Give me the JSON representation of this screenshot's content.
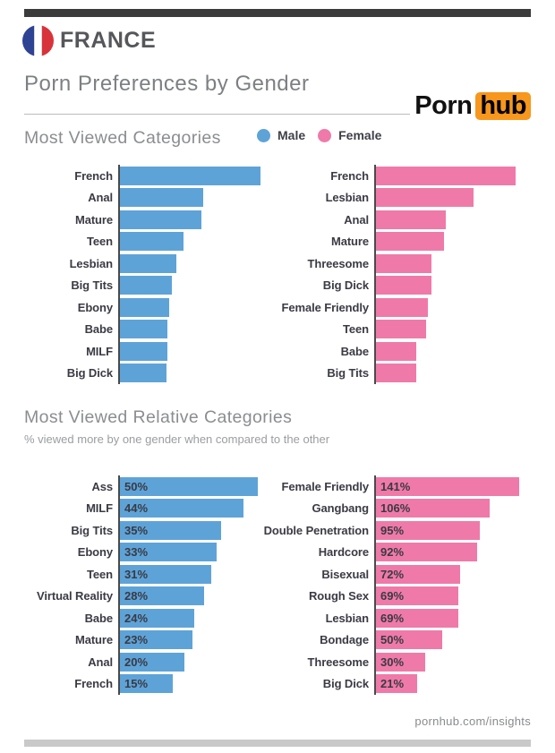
{
  "page": {
    "country": "FRANCE",
    "title": "Porn Preferences by Gender",
    "footer": "pornhub.com/insights",
    "top_bar_color": "#3b3b3b",
    "bottom_bar_color": "#c9c9c9"
  },
  "logo": {
    "part1": "Porn",
    "part2": "hub",
    "accent_color": "#f7971d"
  },
  "flag": {
    "name": "france-flag",
    "blue": "#2e4394",
    "white": "#ffffff",
    "red": "#d8333a"
  },
  "legend": {
    "male_label": "Male",
    "female_label": "Female",
    "male_color": "#5ea3d8",
    "female_color": "#ef7aa9"
  },
  "sections": {
    "most_viewed": {
      "heading": "Most Viewed Categories"
    },
    "relative": {
      "heading": "Most Viewed Relative Categories",
      "subheading": "% viewed more by one gender when compared to the other"
    }
  },
  "chart_data": [
    {
      "id": "male-top",
      "type": "bar",
      "orientation": "horizontal",
      "series_name": "Male",
      "color": "#5ea3d8",
      "title": "Most Viewed Categories (Male)",
      "categories": [
        "French",
        "Anal",
        "Mature",
        "Teen",
        "Lesbian",
        "Big Tits",
        "Ebony",
        "Babe",
        "MILF",
        "Big Dick"
      ],
      "values": [
        100,
        59,
        58,
        45,
        40,
        37,
        35,
        34,
        34,
        33
      ],
      "unit": "relative bar length, max = 100 (no numeric labels shown in image)",
      "value_labels_shown": false
    },
    {
      "id": "female-top",
      "type": "bar",
      "orientation": "horizontal",
      "series_name": "Female",
      "color": "#ef7aa9",
      "title": "Most Viewed Categories (Female)",
      "categories": [
        "French",
        "Lesbian",
        "Anal",
        "Mature",
        "Threesome",
        "Big Dick",
        "Female Friendly",
        "Teen",
        "Babe",
        "Big Tits"
      ],
      "values": [
        100,
        70,
        50,
        49,
        40,
        40,
        37,
        36,
        29,
        29
      ],
      "unit": "relative bar length, max = 100 (no numeric labels shown in image)",
      "value_labels_shown": false
    },
    {
      "id": "male-relative",
      "type": "bar",
      "orientation": "horizontal",
      "series_name": "Male",
      "color": "#5ea3d8",
      "title": "Most Viewed Relative Categories (Male)",
      "categories": [
        "Ass",
        "MILF",
        "Big Tits",
        "Ebony",
        "Teen",
        "Virtual Reality",
        "Babe",
        "Mature",
        "Anal",
        "French"
      ],
      "values": [
        50,
        44,
        35,
        33,
        31,
        28,
        24,
        23,
        20,
        15
      ],
      "display_values": [
        "50%",
        "44%",
        "35%",
        "33%",
        "31%",
        "28%",
        "24%",
        "23%",
        "20%",
        "15%"
      ],
      "unit": "%",
      "value_labels_shown": true
    },
    {
      "id": "female-relative",
      "type": "bar",
      "orientation": "horizontal",
      "series_name": "Female",
      "color": "#ef7aa9",
      "title": "Most Viewed Relative Categories (Female)",
      "categories": [
        "Female Friendly",
        "Gangbang",
        "Double Penetration",
        "Hardcore",
        "Bisexual",
        "Rough Sex",
        "Lesbian",
        "Bondage",
        "Threesome",
        "Big Dick"
      ],
      "values": [
        141,
        106,
        95,
        92,
        72,
        69,
        69,
        50,
        30,
        21
      ],
      "display_values": [
        "141%",
        "106%",
        "95%",
        "92%",
        "72%",
        "69%",
        "69%",
        "50%",
        "30%",
        "21%"
      ],
      "unit": "%",
      "value_labels_shown": true
    }
  ]
}
